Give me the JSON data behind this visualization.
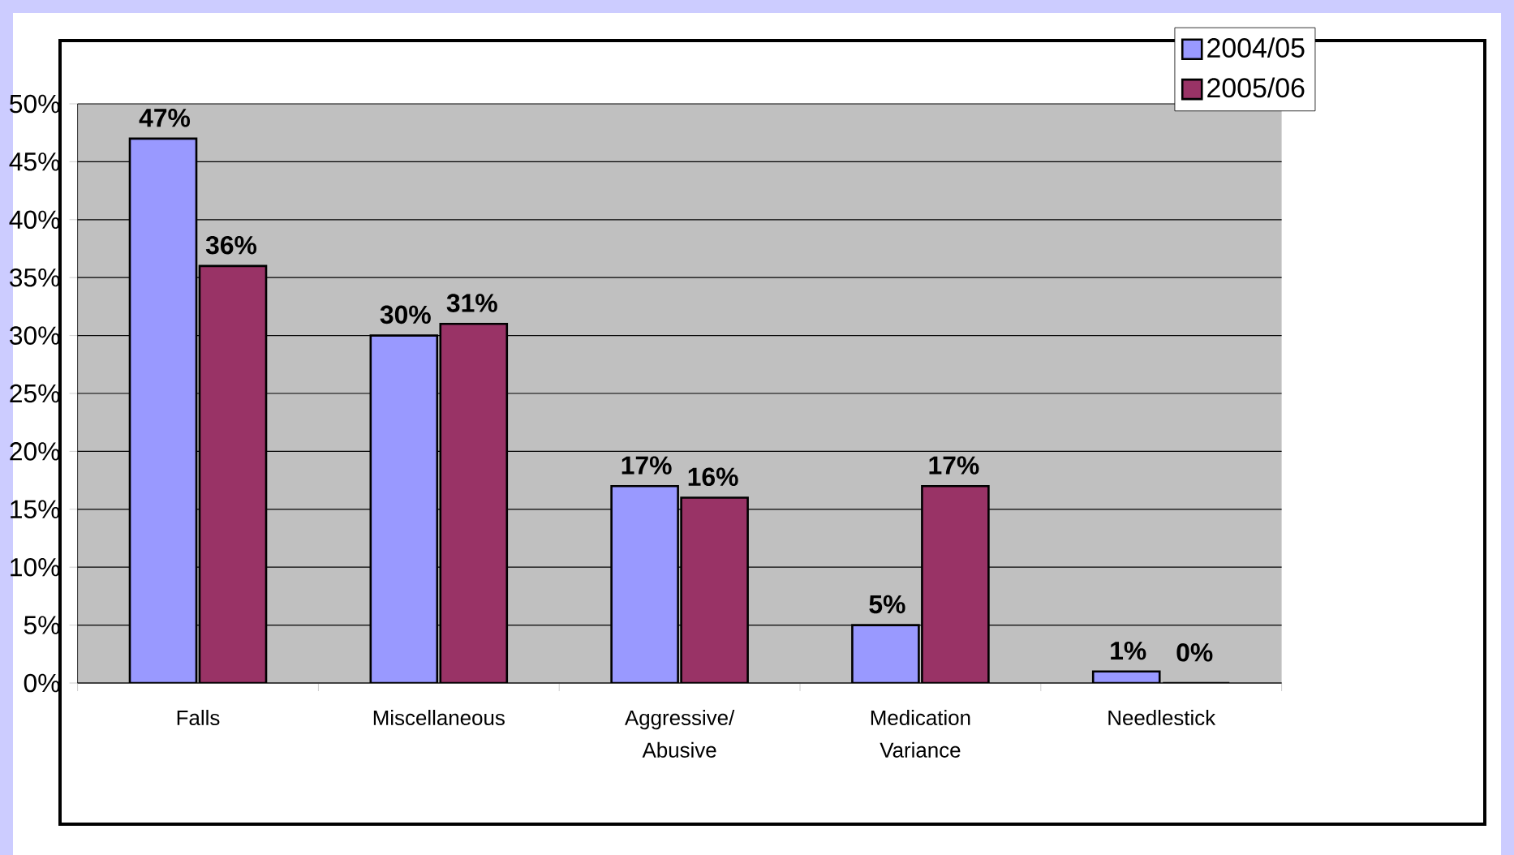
{
  "chart_data": {
    "type": "bar",
    "categories": [
      "Falls",
      "Miscellaneous",
      "Aggressive/ Abusive",
      "Medication Variance",
      "Needlestick"
    ],
    "series": [
      {
        "name": "2004/05",
        "color": "#9999ff",
        "values": [
          47,
          30,
          17,
          5,
          1
        ],
        "value_labels": [
          "47%",
          "30%",
          "17%",
          "5%",
          "1%"
        ]
      },
      {
        "name": "2005/06",
        "color": "#993366",
        "values": [
          36,
          31,
          16,
          17,
          0
        ],
        "value_labels": [
          "36%",
          "31%",
          "16%",
          "17%",
          "0%"
        ]
      }
    ],
    "ylim": [
      0,
      50
    ],
    "yticks": [
      {
        "value": 0,
        "label": "0%"
      },
      {
        "value": 5,
        "label": "5%"
      },
      {
        "value": 10,
        "label": "10%"
      },
      {
        "value": 15,
        "label": "15%"
      },
      {
        "value": 20,
        "label": "20%"
      },
      {
        "value": 25,
        "label": "25%"
      },
      {
        "value": 30,
        "label": "30%"
      },
      {
        "value": 35,
        "label": "35%"
      },
      {
        "value": 40,
        "label": "40%"
      },
      {
        "value": 45,
        "label": "45%"
      },
      {
        "value": 50,
        "label": "50%"
      }
    ],
    "grid": "y",
    "legend": "top right"
  }
}
